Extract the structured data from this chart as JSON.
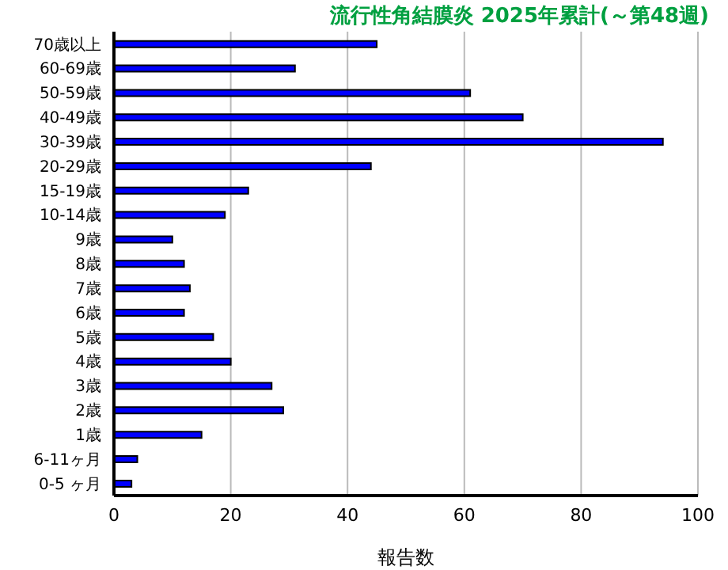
{
  "chart_data": {
    "type": "bar",
    "orientation": "horizontal",
    "title": "流行性角結膜炎 2025年累計(～第48週)",
    "xlabel": "報告数",
    "categories": [
      "70歳以上",
      "60-69歳",
      "50-59歳",
      "40-49歳",
      "30-39歳",
      "20-29歳",
      "15-19歳",
      "10-14歳",
      "9歳",
      "8歳",
      "7歳",
      "6歳",
      "5歳",
      "4歳",
      "3歳",
      "2歳",
      "1歳",
      "6-11ヶ月",
      "0-5 ヶ月"
    ],
    "values": [
      45,
      31,
      61,
      70,
      94,
      44,
      23,
      19,
      10,
      12,
      13,
      12,
      17,
      20,
      27,
      29,
      15,
      4,
      3
    ],
    "color": "#0000ff",
    "xlim": [
      0,
      100
    ],
    "xticks": [
      0,
      20,
      40,
      60,
      80,
      100
    ],
    "grid": "x",
    "legend": false
  }
}
